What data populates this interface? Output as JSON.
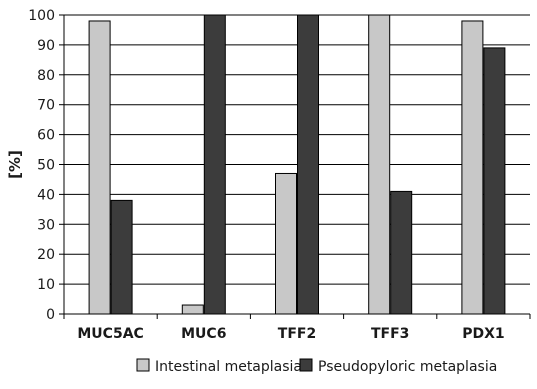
{
  "chart_data": {
    "type": "bar",
    "categories": [
      "MUC5AC",
      "MUC6",
      "TFF2",
      "TFF3",
      "PDX1"
    ],
    "series": [
      {
        "name": "Intestinal metaplasia",
        "values": [
          98,
          3,
          47,
          100,
          98
        ],
        "color": "#c8c8c8"
      },
      {
        "name": "Pseudopyloric metaplasia",
        "values": [
          38,
          100,
          100,
          41,
          89
        ],
        "color": "#3c3c3c"
      }
    ],
    "title": "",
    "xlabel": "",
    "ylabel": "[%]",
    "ylim": [
      0,
      100
    ],
    "yticks": [
      "0",
      "10",
      "20",
      "30",
      "40",
      "50",
      "60",
      "70",
      "80",
      "90",
      "100"
    ],
    "grid": true,
    "legend_position": "bottom"
  }
}
